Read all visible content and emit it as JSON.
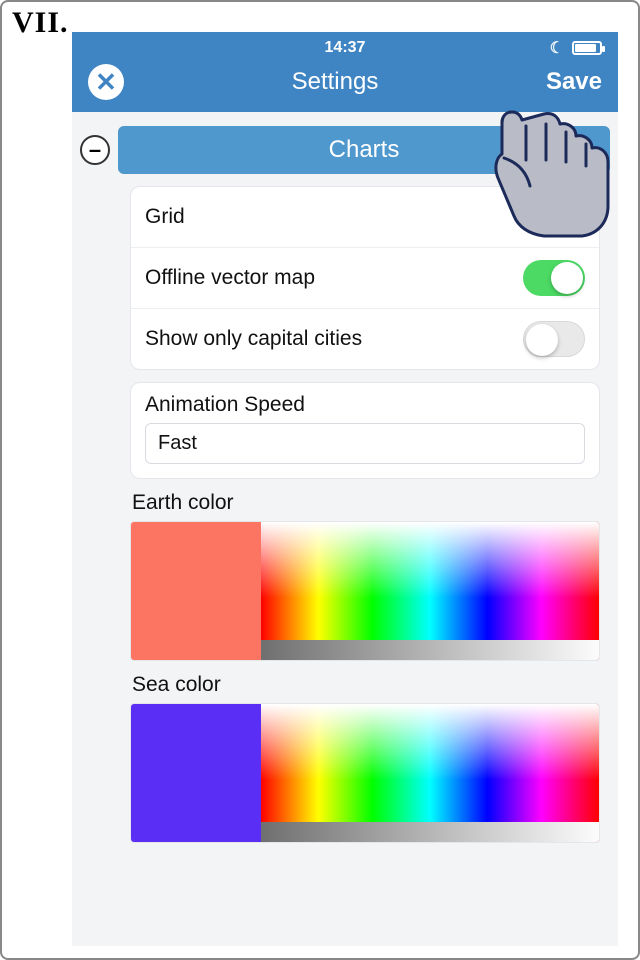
{
  "step_label": "VII.",
  "statusbar": {
    "time": "14:37",
    "moon_glyph": "☾",
    "battery_pct": 80
  },
  "nav": {
    "title": "Settings",
    "close_glyph": "✕",
    "save_label": "Save"
  },
  "section": {
    "title": "Charts",
    "collapse_glyph": "–"
  },
  "toggles": [
    {
      "label": "Grid",
      "on": true
    },
    {
      "label": "Offline vector map",
      "on": true
    },
    {
      "label": "Show only capital cities",
      "on": false
    }
  ],
  "animation_speed": {
    "label": "Animation Speed",
    "value": "Fast"
  },
  "earth_color": {
    "label": "Earth color",
    "swatch": "#fc7562"
  },
  "sea_color": {
    "label": "Sea color",
    "swatch": "#5a2ef5"
  },
  "colors": {
    "navbar_bg": "#3f85c4",
    "section_tab_bg": "#4f98ce",
    "switch_on": "#4cd964",
    "switch_off": "#e9e9ea",
    "card_border": "#e4e6ea",
    "text": "#111111",
    "hand_fill": "#b9bcc6",
    "hand_stroke": "#1c2a5a"
  }
}
